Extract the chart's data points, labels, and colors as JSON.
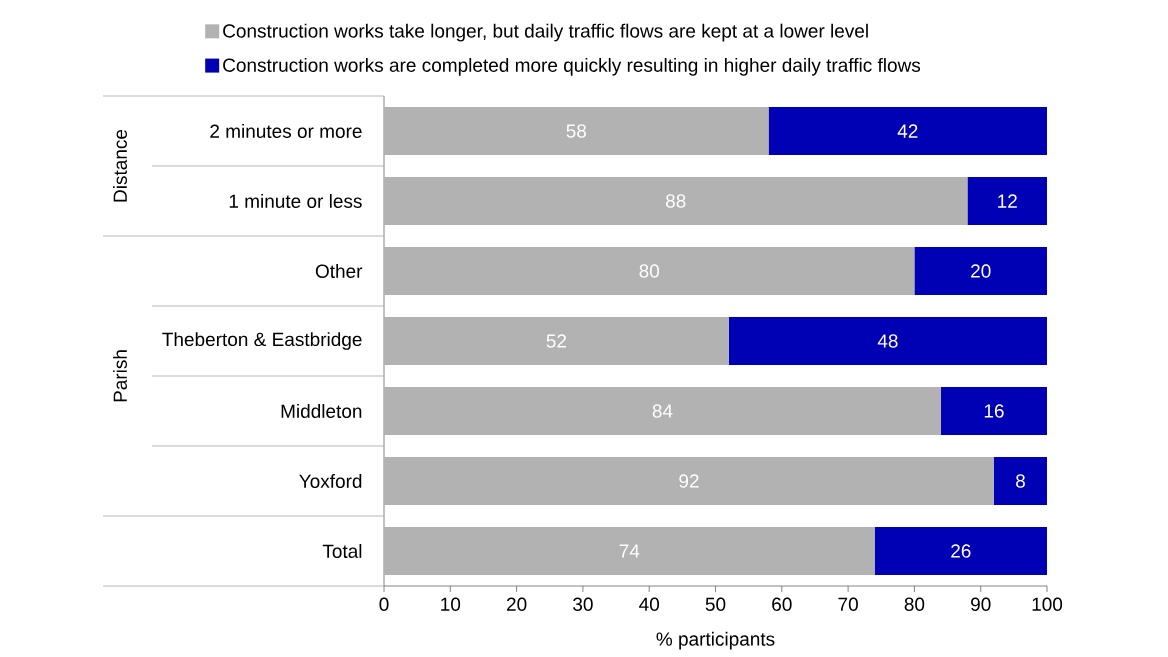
{
  "chart_data": {
    "type": "bar",
    "orientation": "horizontal",
    "stacked": true,
    "categories": [
      "2 minutes or more",
      "1 minute or less",
      "Other",
      "Theberton & Eastbridge",
      "Middleton",
      "Yoxford",
      "Total"
    ],
    "series": [
      {
        "name": "Construction works take longer, but daily traffic flows are kept at a lower level",
        "color": "#b2b2b2",
        "values": [
          58,
          88,
          80,
          52,
          84,
          92,
          74
        ]
      },
      {
        "name": "Construction works are completed more quickly resulting in higher daily traffic flows",
        "color": "#0000b4",
        "values": [
          42,
          12,
          20,
          48,
          16,
          8,
          26
        ]
      }
    ],
    "xlabel": "% participants",
    "xlim": [
      0,
      100
    ],
    "xticks": [
      0,
      10,
      20,
      30,
      40,
      50,
      60,
      70,
      80,
      90,
      100
    ],
    "legend": "top",
    "data_labels": true,
    "annotations": [
      "Distance",
      "Parish"
    ]
  }
}
